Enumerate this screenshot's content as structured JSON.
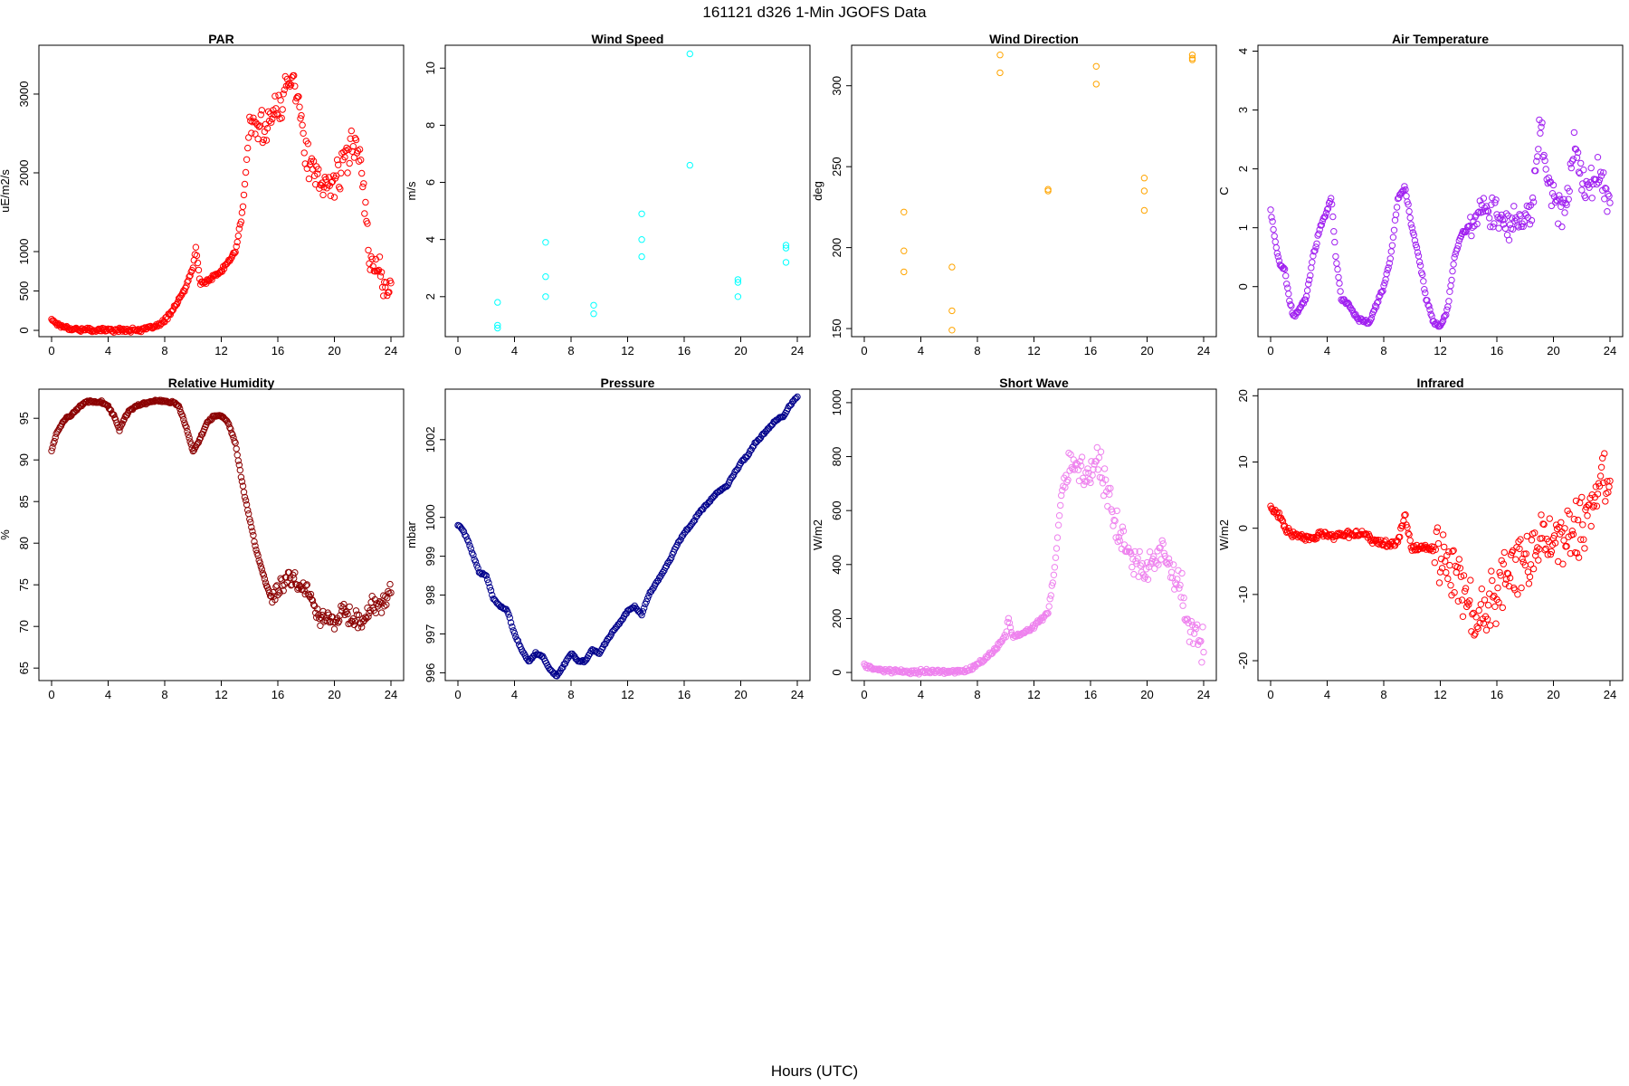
{
  "figure": {
    "title": "161121   d326   1-Min  JGOFS Data",
    "xlabel": "Hours (UTC)"
  },
  "chart_data": [
    {
      "type": "scatter",
      "title": "PAR",
      "ylabel": "uE/m2/s",
      "color": "#ff0000",
      "xlim": [
        0,
        24
      ],
      "ylim": [
        -80,
        3620
      ],
      "xticks": [
        0,
        4,
        8,
        12,
        16,
        20,
        24
      ],
      "yticks": [
        0,
        500,
        1000,
        2000,
        3000
      ],
      "density": 4,
      "jitter": 260,
      "jitter_start": 14,
      "x": [
        0,
        0.3,
        0.6,
        1,
        1.5,
        2,
        3,
        4,
        5,
        6,
        6.5,
        7,
        7.5,
        8,
        8.5,
        9,
        9.5,
        10,
        10.2,
        10.5,
        11,
        12,
        13,
        13.5,
        14,
        15,
        16,
        16.5,
        17,
        17.5,
        18,
        19,
        20,
        21,
        21.5,
        22,
        22.5,
        23,
        23.5,
        24
      ],
      "y": [
        140,
        100,
        60,
        40,
        20,
        10,
        5,
        5,
        5,
        5,
        10,
        30,
        60,
        120,
        250,
        380,
        550,
        800,
        1050,
        600,
        620,
        750,
        1000,
        1500,
        2600,
        2600,
        2800,
        3000,
        3300,
        2900,
        2200,
        1800,
        1900,
        2200,
        2500,
        2000,
        800,
        900,
        550,
        480
      ]
    },
    {
      "type": "scatter",
      "title": "Wind Speed",
      "ylabel": "m/s",
      "color": "#00ffff",
      "xlim": [
        0,
        24
      ],
      "ylim": [
        0.6,
        10.8
      ],
      "xticks": [
        0,
        4,
        8,
        12,
        16,
        20,
        24
      ],
      "yticks": [
        2,
        4,
        6,
        8,
        10
      ],
      "points": [
        [
          2.8,
          1.8
        ],
        [
          2.8,
          1.0
        ],
        [
          2.8,
          0.9
        ],
        [
          6.2,
          3.9
        ],
        [
          6.2,
          2.7
        ],
        [
          6.2,
          2.0
        ],
        [
          9.6,
          1.7
        ],
        [
          9.6,
          1.4
        ],
        [
          13.0,
          4.9
        ],
        [
          13.0,
          4.0
        ],
        [
          13.0,
          3.4
        ],
        [
          16.4,
          10.5
        ],
        [
          16.4,
          6.6
        ],
        [
          19.8,
          2.6
        ],
        [
          19.8,
          2.5
        ],
        [
          19.8,
          2.0
        ],
        [
          23.2,
          3.8
        ],
        [
          23.2,
          3.7
        ],
        [
          23.2,
          3.2
        ]
      ]
    },
    {
      "type": "scatter",
      "title": "Wind Direction",
      "ylabel": "deg",
      "color": "#ffa500",
      "xlim": [
        0,
        24
      ],
      "ylim": [
        145,
        325
      ],
      "xticks": [
        0,
        4,
        8,
        12,
        16,
        20,
        24
      ],
      "yticks": [
        150,
        200,
        250,
        300
      ],
      "points": [
        [
          2.8,
          222
        ],
        [
          2.8,
          198
        ],
        [
          2.8,
          185
        ],
        [
          6.2,
          188
        ],
        [
          6.2,
          161
        ],
        [
          6.2,
          149
        ],
        [
          9.6,
          319
        ],
        [
          9.6,
          308
        ],
        [
          13.0,
          236
        ],
        [
          13.0,
          235
        ],
        [
          16.4,
          312
        ],
        [
          16.4,
          301
        ],
        [
          19.8,
          243
        ],
        [
          19.8,
          235
        ],
        [
          19.8,
          223
        ],
        [
          23.2,
          319
        ],
        [
          23.2,
          317
        ],
        [
          23.2,
          316
        ]
      ]
    },
    {
      "type": "scatter",
      "title": "Air Temperature",
      "ylabel": "C",
      "color": "#a020f0",
      "xlim": [
        0,
        24
      ],
      "ylim": [
        -0.85,
        4.1
      ],
      "xticks": [
        0,
        4,
        8,
        12,
        16,
        20,
        24
      ],
      "yticks": [
        0,
        1,
        2,
        3,
        4
      ],
      "density": 4,
      "jitter": 0.35,
      "jitter_start": 14,
      "x": [
        0,
        0.3,
        0.6,
        1,
        1.3,
        1.6,
        2,
        2.5,
        3,
        3.5,
        4,
        4.3,
        4.6,
        5,
        5.5,
        6,
        6.5,
        7,
        7.5,
        8,
        8.5,
        9,
        9.5,
        10,
        10.5,
        11,
        11.5,
        12,
        12.5,
        13,
        13.5,
        14,
        14.5,
        15,
        15.5,
        16,
        16.5,
        17,
        17.5,
        18,
        18.5,
        19,
        19.5,
        20,
        20.5,
        21,
        21.5,
        22,
        22.5,
        23,
        23.5,
        24
      ],
      "y": [
        1.3,
        0.8,
        0.4,
        0.3,
        -0.2,
        -0.5,
        -0.4,
        -0.2,
        0.5,
        1.0,
        1.3,
        1.5,
        0.5,
        -0.2,
        -0.3,
        -0.5,
        -0.6,
        -0.6,
        -0.3,
        0.0,
        0.5,
        1.5,
        1.7,
        1.0,
        0.5,
        -0.2,
        -0.6,
        -0.7,
        -0.4,
        0.5,
        0.9,
        1.0,
        1.2,
        1.4,
        1.3,
        1.2,
        1.1,
        1.1,
        1.2,
        1.1,
        1.3,
        2.8,
        2.0,
        1.5,
        1.3,
        1.5,
        2.5,
        1.8,
        1.6,
        2.0,
        1.8,
        1.2
      ]
    },
    {
      "type": "scatter",
      "title": "Relative Humidity",
      "ylabel": "%",
      "color": "#8b0000",
      "xlim": [
        0,
        24
      ],
      "ylim": [
        63.5,
        98.5
      ],
      "xticks": [
        0,
        4,
        8,
        12,
        16,
        20,
        24
      ],
      "yticks": [
        65,
        70,
        75,
        80,
        85,
        90,
        95
      ],
      "density": 4,
      "jitter": 1.5,
      "jitter_start": 15.5,
      "x": [
        0,
        0.3,
        0.6,
        1,
        1.5,
        2,
        2.5,
        3,
        3.5,
        4,
        4.5,
        4.8,
        5,
        5.5,
        6,
        6.5,
        7,
        7.5,
        8,
        8.5,
        9,
        9.5,
        10,
        10.5,
        11,
        11.5,
        12,
        12.5,
        13,
        13.5,
        14,
        14.5,
        15,
        15.5,
        16,
        16.5,
        17,
        17.5,
        18,
        18.5,
        19,
        19.5,
        20,
        20.5,
        21,
        21.5,
        22,
        22.5,
        23,
        23.5,
        24
      ],
      "y": [
        91,
        93,
        94,
        95,
        95.5,
        96.5,
        97,
        97,
        97,
        96.5,
        95,
        93.5,
        94.5,
        96,
        96.5,
        96.8,
        97,
        97.2,
        97,
        97,
        96.5,
        94,
        91,
        92.5,
        94.5,
        95.3,
        95.3,
        94.5,
        92,
        87,
        83,
        79,
        76,
        73.5,
        74.5,
        75.5,
        76,
        75,
        74.5,
        73,
        70,
        71,
        70.5,
        72,
        71,
        71,
        70,
        72,
        72.5,
        73,
        74
      ]
    },
    {
      "type": "scatter",
      "title": "Pressure",
      "ylabel": "mbar",
      "color": "#00008b",
      "xlim": [
        0,
        24
      ],
      "ylim": [
        995.8,
        1003.3
      ],
      "xticks": [
        0,
        4,
        8,
        12,
        16,
        20,
        24
      ],
      "yticks": [
        996,
        997,
        998,
        999,
        1000,
        1002
      ],
      "density": 5,
      "jitter": 0.03,
      "jitter_start": 0,
      "x": [
        0,
        0.3,
        0.6,
        1,
        1.5,
        2,
        2.5,
        3,
        3.5,
        4,
        4.5,
        5,
        5.5,
        6,
        6.5,
        7,
        7.5,
        8,
        8.5,
        9,
        9.5,
        10,
        10.5,
        11,
        11.5,
        12,
        12.5,
        13,
        13.5,
        14,
        14.5,
        15,
        15.5,
        16,
        16.5,
        17,
        17.5,
        18,
        18.5,
        19,
        19.5,
        20,
        20.5,
        21,
        21.5,
        22,
        22.5,
        23,
        23.5,
        24
      ],
      "y": [
        999.8,
        999.7,
        999.5,
        999.1,
        998.6,
        998.5,
        997.9,
        997.7,
        997.6,
        997.0,
        996.6,
        996.3,
        996.5,
        996.4,
        996.1,
        995.9,
        996.2,
        996.5,
        996.3,
        996.3,
        996.6,
        996.5,
        996.8,
        997.1,
        997.3,
        997.6,
        997.7,
        997.5,
        998.0,
        998.3,
        998.6,
        998.9,
        999.3,
        999.6,
        999.8,
        1000.1,
        1000.3,
        1000.5,
        1000.7,
        1000.8,
        1001.1,
        1001.4,
        1001.6,
        1001.9,
        1002.1,
        1002.3,
        1002.5,
        1002.6,
        1002.9,
        1003.1
      ]
    },
    {
      "type": "scatter",
      "title": "Short Wave",
      "ylabel": "W/m2",
      "color": "#ee82ee",
      "xlim": [
        0,
        24
      ],
      "ylim": [
        -30,
        1050
      ],
      "xticks": [
        0,
        4,
        8,
        12,
        16,
        20,
        24
      ],
      "yticks": [
        0,
        200,
        400,
        600,
        800,
        1000
      ],
      "density": 4,
      "jitter": 80,
      "jitter_start": 14,
      "x": [
        0,
        0.3,
        0.6,
        1,
        2,
        3,
        4,
        5,
        6,
        7,
        7.5,
        8,
        8.5,
        9,
        9.5,
        10,
        10.2,
        10.5,
        11,
        12,
        13,
        13.5,
        14,
        14.5,
        15,
        15.5,
        16,
        16.5,
        17,
        17.5,
        18,
        18.5,
        19,
        19.5,
        20,
        20.5,
        21,
        21.5,
        22,
        22.5,
        23,
        23.5,
        24
      ],
      "y": [
        30,
        20,
        15,
        10,
        5,
        3,
        3,
        3,
        3,
        5,
        10,
        30,
        50,
        70,
        100,
        140,
        200,
        130,
        140,
        170,
        220,
        400,
        700,
        750,
        780,
        720,
        750,
        800,
        700,
        600,
        500,
        450,
        420,
        380,
        400,
        420,
        450,
        380,
        350,
        300,
        150,
        120,
        90
      ]
    },
    {
      "type": "scatter",
      "title": "Infrared",
      "ylabel": "W/m2",
      "color": "#ff0000",
      "xlim": [
        0,
        24
      ],
      "ylim": [
        -23,
        21
      ],
      "xticks": [
        0,
        4,
        8,
        12,
        16,
        20,
        24
      ],
      "yticks": [
        -20,
        -10,
        0,
        10,
        20
      ],
      "density": 4,
      "jitter": 5.5,
      "jitter_start": 11.5,
      "x": [
        0,
        0.3,
        0.6,
        1,
        1.5,
        2,
        2.5,
        3,
        3.5,
        4,
        4.5,
        5,
        5.5,
        6,
        6.5,
        7,
        7.5,
        8,
        8.5,
        9,
        9.5,
        10,
        10.5,
        11,
        11.5,
        12,
        12.5,
        13,
        13.5,
        14,
        14.5,
        15,
        15.5,
        16,
        16.5,
        17,
        17.5,
        18,
        18.5,
        19,
        19.5,
        20,
        20.5,
        21,
        21.5,
        22,
        22.5,
        23,
        23.5,
        24
      ],
      "y": [
        3,
        2.5,
        2,
        0,
        -1,
        -1,
        -1.5,
        -1.5,
        -1,
        -1,
        -1.5,
        -1,
        -1,
        -1,
        -1,
        -1.5,
        -2,
        -2,
        -2.5,
        -2,
        2,
        -3,
        -3,
        -3,
        -3,
        -4,
        -5,
        -6,
        -8,
        -11,
        -13,
        -14,
        -12,
        -10,
        -7,
        -6,
        -5,
        -5,
        -4,
        -3,
        -2,
        -1,
        -1,
        -1,
        -1,
        0,
        2,
        5,
        8,
        6
      ]
    }
  ]
}
